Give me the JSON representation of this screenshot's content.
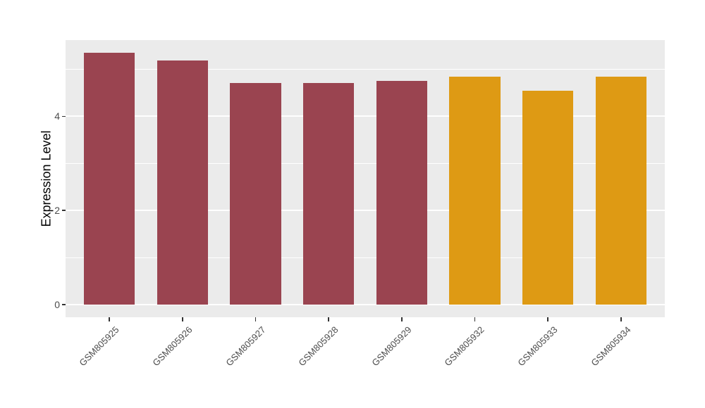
{
  "chart_data": {
    "type": "bar",
    "title": "",
    "categories": [
      "GSM805925",
      "GSM805926",
      "GSM805927",
      "GSM805928",
      "GSM805929",
      "GSM805932",
      "GSM805933",
      "GSM805934"
    ],
    "values": [
      5.35,
      5.19,
      4.71,
      4.71,
      4.76,
      4.84,
      4.55,
      4.84
    ],
    "bar_colors": [
      "#9A4450",
      "#9A4450",
      "#9A4450",
      "#9A4450",
      "#9A4450",
      "#DE9A14",
      "#DE9A14",
      "#DE9A14"
    ],
    "xlabel": "",
    "ylabel": "Expression Level",
    "yticks": [
      {
        "value": 0,
        "label": "0"
      },
      {
        "value": 2,
        "label": "2"
      },
      {
        "value": 4,
        "label": "4"
      }
    ],
    "minor_gridlines": [
      1,
      3,
      5
    ],
    "ylim": [
      -0.27,
      5.62
    ],
    "bar_width_fraction": 0.7,
    "grid": "on",
    "legend": "none",
    "colors": {
      "panel_background": "#EBEBEB",
      "gridline": "#FFFFFF",
      "tick_mark": "#333333",
      "axis_text": "#4D4D4D",
      "axis_title": "#000000",
      "figure_background": "#FFFFFF"
    }
  }
}
